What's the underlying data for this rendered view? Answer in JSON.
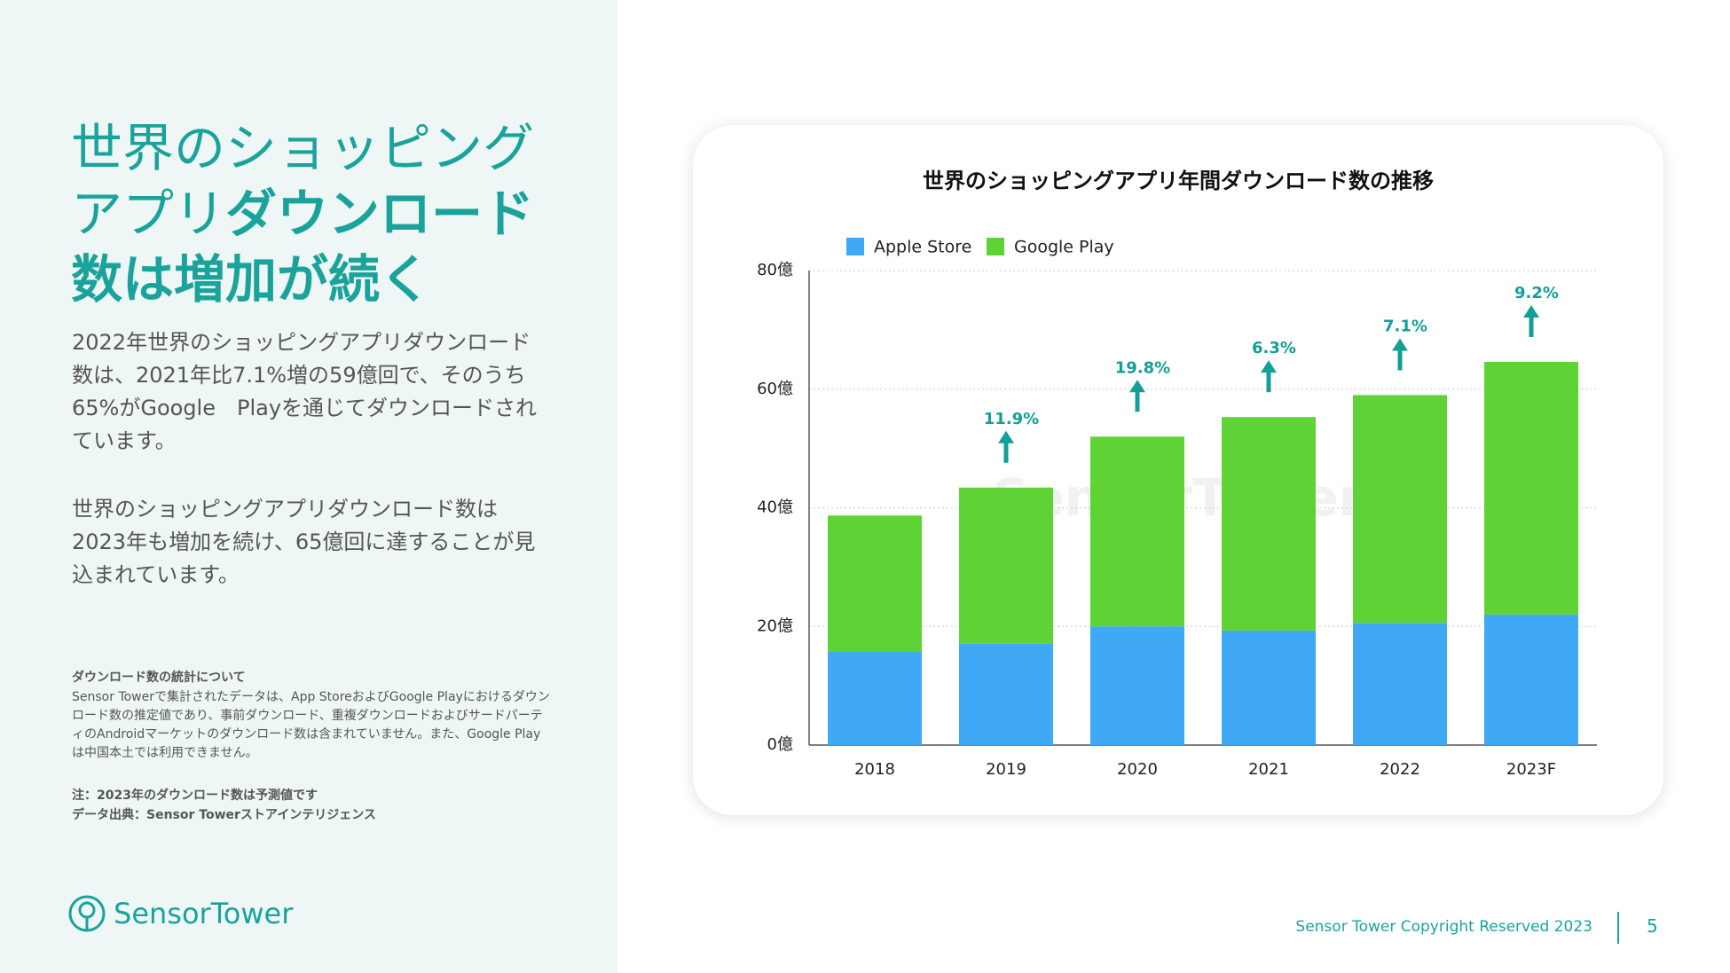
{
  "slide": {
    "title_parts": [
      "世界のショッピング",
      "アプリ",
      "ダウンロード",
      "数は増加が続く"
    ],
    "paragraphs": [
      "2022年世界のショッピングアプリダウンロード数は、2021年比7.1%増の59億回で、そのうち65%がGoogle　Playを通じてダウンロードされています。",
      "世界のショッピングアプリダウンロード数は2023年も増加を続け、65億回に達することが見込まれています。"
    ],
    "note_heading": "ダウンロード数の統計について",
    "note_body": "Sensor Towerで集計されたデータは、App StoreおよびGoogle Playにおけるダウンロード数の推定値であり、事前ダウンロード、重複ダウンロードおよびサードパーティのAndroidマーケットのダウンロード数は含まれていません。また、Google Playは中国本土では利用できません。",
    "note_forecast": "注：2023年のダウンロード数は予測値です",
    "note_source": "データ出典：Sensor Towerストアインテリジェンス",
    "logo": "SensorTower",
    "copyright": "Sensor Tower Copyright Reserved 2023",
    "page_number": "5"
  },
  "chart_data": {
    "type": "stacked_bar",
    "title": "世界のショッピングアプリ年間ダウンロード数の推移",
    "watermark": "SensorTower",
    "categories": [
      "2018",
      "2019",
      "2020",
      "2021",
      "2022",
      "2023F"
    ],
    "series": [
      {
        "name": "Apple Store",
        "color": "#3fa9f5",
        "values": [
          15.7,
          17.1,
          20.0,
          19.3,
          20.6,
          22.0
        ]
      },
      {
        "name": "Google Play",
        "color": "#5fd335",
        "values": [
          23.0,
          26.3,
          32.0,
          36.0,
          38.4,
          42.6
        ]
      }
    ],
    "growth_labels": [
      null,
      "11.9%",
      "19.8%",
      "6.3%",
      "7.1%",
      "9.2%"
    ],
    "growth_values": [
      null,
      11.9,
      19.8,
      6.3,
      7.1,
      9.2
    ],
    "growth_color": "#139e96",
    "ylim": [
      0,
      80
    ],
    "yticks": [
      {
        "value": 0,
        "label": "0億"
      },
      {
        "value": 20,
        "label": "20億"
      },
      {
        "value": 40,
        "label": "40億"
      },
      {
        "value": 60,
        "label": "60億"
      },
      {
        "value": 80,
        "label": "80億"
      }
    ],
    "grid": true
  }
}
